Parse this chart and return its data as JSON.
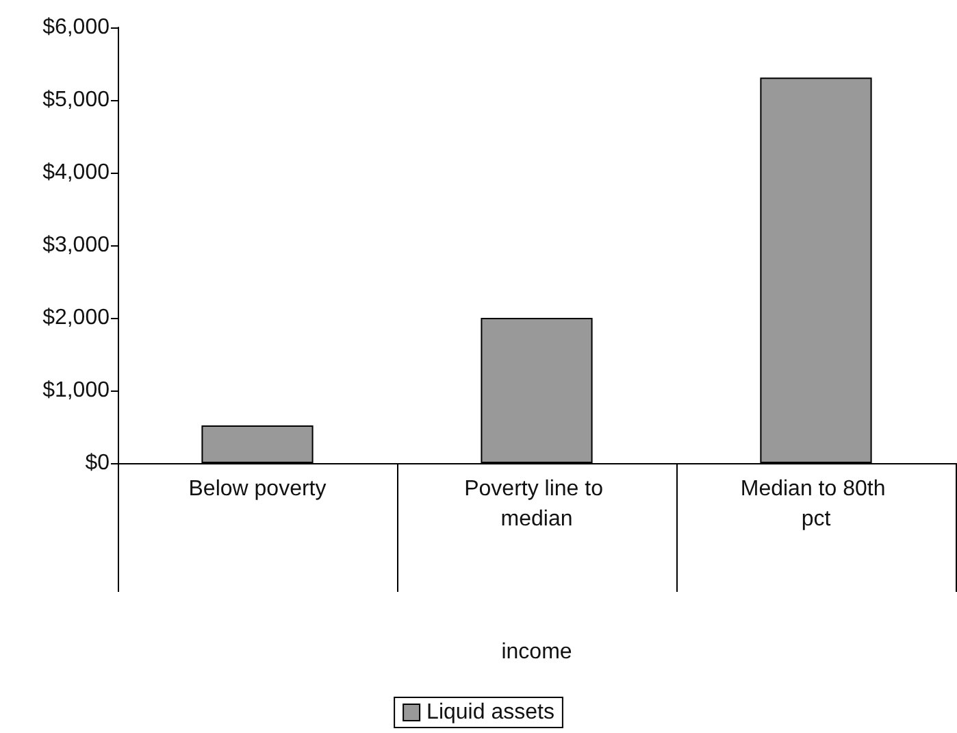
{
  "chart_data": {
    "type": "bar",
    "xlabel": "income",
    "categories": [
      "Below poverty",
      "Poverty line to median",
      "Median to 80th pct"
    ],
    "series": [
      {
        "name": "Liquid assets",
        "color": "#999999",
        "values": [
          520,
          2000,
          5310
        ]
      }
    ],
    "ylim": [
      0,
      6000
    ],
    "yticks": [
      {
        "value": 0,
        "label": "$0"
      },
      {
        "value": 1000,
        "label": "$1,000"
      },
      {
        "value": 2000,
        "label": "$2,000"
      },
      {
        "value": 3000,
        "label": "$3,000"
      },
      {
        "value": 4000,
        "label": "$4,000"
      },
      {
        "value": 5000,
        "label": "$5,000"
      },
      {
        "value": 6000,
        "label": "$6,000"
      }
    ],
    "grid": false,
    "legend": "bottom"
  }
}
